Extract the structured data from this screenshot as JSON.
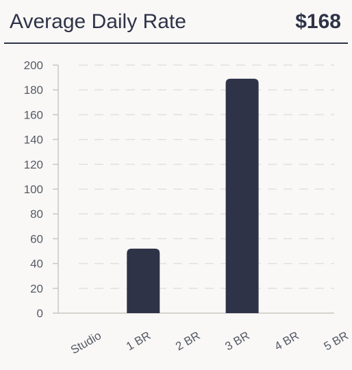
{
  "header": {
    "title": "Average Daily Rate",
    "value": "$168"
  },
  "colors": {
    "bar": "#2e3348",
    "grid": "#e2e0dc",
    "axis": "#c9c7c2",
    "text": "#555a66"
  },
  "chart_data": {
    "type": "bar",
    "categories": [
      "Studio",
      "1 BR",
      "2 BR",
      "3 BR",
      "4 BR",
      "5 BR"
    ],
    "values": [
      0,
      52,
      0,
      189,
      0,
      0
    ],
    "yticks": [
      0,
      20,
      40,
      60,
      80,
      100,
      120,
      140,
      160,
      180,
      200
    ],
    "ylim": [
      0,
      200
    ],
    "grid": true,
    "xlabel": "",
    "ylabel": ""
  }
}
